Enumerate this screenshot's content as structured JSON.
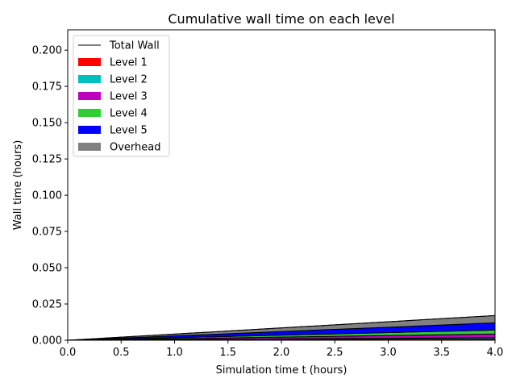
{
  "chart_data": {
    "type": "area",
    "title": "Cumulative wall time on each level",
    "xlabel": "Simulation time t (hours)",
    "ylabel": "Wall time (hours)",
    "xlim": [
      0,
      4
    ],
    "ylim": [
      0,
      0.214
    ],
    "x_ticks": [
      "0.0",
      "0.5",
      "1.0",
      "1.5",
      "2.0",
      "2.5",
      "3.0",
      "3.5",
      "4.0"
    ],
    "y_ticks": [
      "0.000",
      "0.025",
      "0.050",
      "0.075",
      "0.100",
      "0.125",
      "0.150",
      "0.175",
      "0.200"
    ],
    "grid": false,
    "legend_position": "top-left",
    "x": [
      0,
      4
    ],
    "series": [
      {
        "name": "Level 1",
        "color": "#ff0000",
        "values": [
          0,
          0.001
        ]
      },
      {
        "name": "Level 2",
        "color": "#00bfbf",
        "values": [
          0,
          0.0008
        ]
      },
      {
        "name": "Level 3",
        "color": "#bf00bf",
        "values": [
          0,
          0.0025
        ]
      },
      {
        "name": "Level 4",
        "color": "#32cd32",
        "values": [
          0,
          0.0027
        ]
      },
      {
        "name": "Level 5",
        "color": "#0000ff",
        "values": [
          0,
          0.005
        ]
      },
      {
        "name": "Overhead",
        "color": "#808080",
        "values": [
          0,
          0.005
        ]
      }
    ],
    "total": {
      "name": "Total Wall",
      "color": "#000000",
      "values": [
        0,
        0.017
      ]
    }
  }
}
